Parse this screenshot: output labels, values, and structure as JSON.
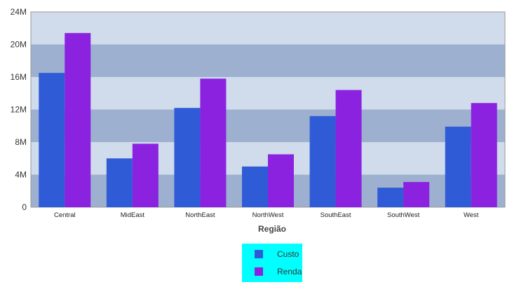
{
  "chart_data": {
    "type": "bar",
    "title": "",
    "xlabel": "Região",
    "ylabel": "",
    "categories": [
      "Central",
      "MidEast",
      "NorthEast",
      "NorthWest",
      "SouthEast",
      "SouthWest",
      "West"
    ],
    "series": [
      {
        "name": "Custo",
        "color": "#2f5bd7",
        "values": [
          16.5,
          6.0,
          12.2,
          5.0,
          11.2,
          2.4,
          9.9
        ]
      },
      {
        "name": "Renda",
        "color": "#8a22e0",
        "values": [
          21.4,
          7.8,
          15.8,
          6.5,
          14.4,
          3.1,
          12.8
        ]
      }
    ],
    "yticks": [
      0,
      4,
      8,
      12,
      16,
      20,
      24
    ],
    "ytick_labels": [
      "0",
      "4M",
      "8M",
      "12M",
      "16M",
      "20M",
      "24M"
    ],
    "ylim": [
      0,
      24
    ],
    "grid": true,
    "band_colors": [
      "#9db0d0",
      "#d0dceb"
    ],
    "legend": {
      "placement": "bottom-center",
      "background": "#00ffff"
    }
  }
}
